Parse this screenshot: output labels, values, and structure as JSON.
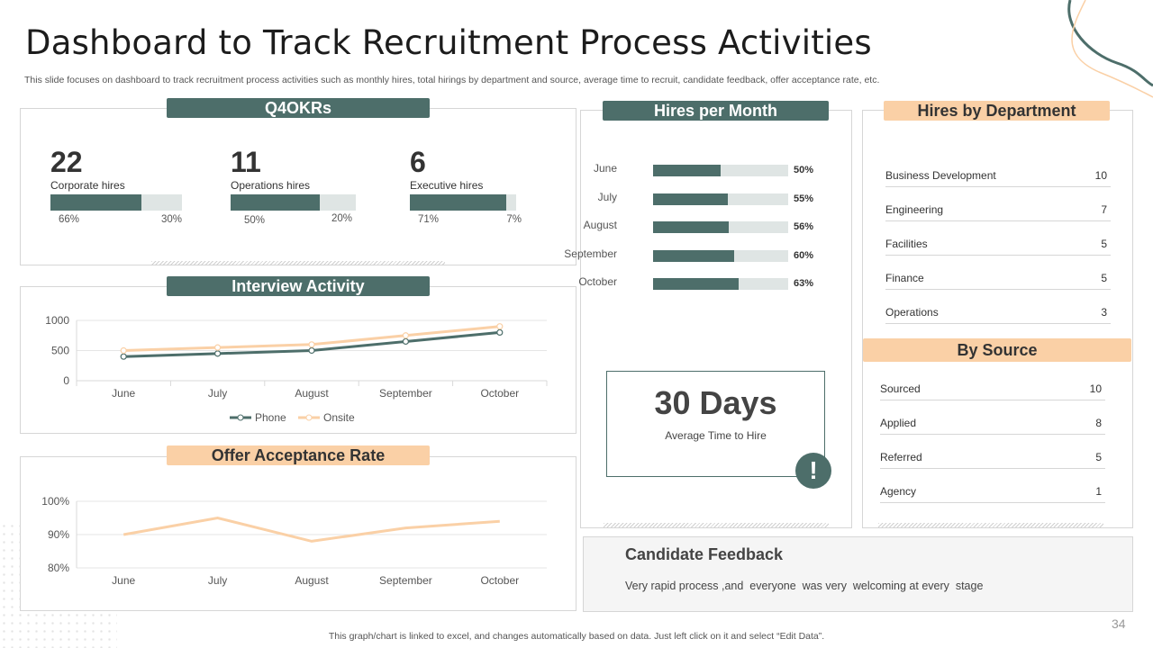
{
  "page": {
    "title": "Dashboard to Track Recruitment Process Activities",
    "subtitle": "This slide focuses on dashboard to track recruitment process activities such as monthly hires, total hirings by department and source, average time to recruit, candidate feedback, offer acceptance rate, etc.",
    "footer": "This graph/chart is linked to excel,  and changes automatically based on data. Just left click on it and select “Edit Data”.",
    "page_number": "34"
  },
  "okrs": {
    "title": "Q4OKRs",
    "items": [
      {
        "value": "22",
        "label": "Corporate hires",
        "pct_left": "66%",
        "pct_right": "30%",
        "fill": 0.69
      },
      {
        "value": "11",
        "label": "Operations hires",
        "pct_left": "50%",
        "pct_right": "20%",
        "fill": 0.71
      },
      {
        "value": "6",
        "label": "Executive hires",
        "pct_left": "71%",
        "pct_right": "7%",
        "fill": 0.91
      }
    ]
  },
  "hires_per_month": {
    "title": "Hires per Month",
    "rows": [
      {
        "month": "June",
        "pct": "50%",
        "value": 0.5
      },
      {
        "month": "July",
        "pct": "55%",
        "value": 0.55
      },
      {
        "month": "August",
        "pct": "56%",
        "value": 0.56
      },
      {
        "month": "September",
        "pct": "60%",
        "value": 0.6
      },
      {
        "month": "October",
        "pct": "63%",
        "value": 0.63
      }
    ]
  },
  "time_to_hire": {
    "value": "30 Days",
    "label": "Average  Time to Hire",
    "icon": "exclamation-icon"
  },
  "hires_by_department": {
    "title": "Hires by Department",
    "rows": [
      {
        "name": "Business Development",
        "value": "10"
      },
      {
        "name": "Engineering",
        "value": "7"
      },
      {
        "name": "Facilities",
        "value": "5"
      },
      {
        "name": "Finance",
        "value": "5"
      },
      {
        "name": "Operations",
        "value": "3"
      }
    ]
  },
  "by_source": {
    "title": "By Source",
    "rows": [
      {
        "name": "Sourced",
        "value": "10"
      },
      {
        "name": "Applied",
        "value": "8"
      },
      {
        "name": "Referred",
        "value": "5"
      },
      {
        "name": "Agency",
        "value": "1"
      }
    ]
  },
  "candidate_feedback": {
    "title": "Candidate Feedback",
    "text": "Very rapid process ,and  everyone  was very  welcoming at every  stage"
  },
  "interview_activity": {
    "title": "Interview Activity"
  },
  "offer_acceptance": {
    "title": "Offer Acceptance Rate"
  },
  "colors": {
    "dark": "#4d6e6a",
    "peach": "#fad0a6",
    "track": "#dfe5e4"
  },
  "chart_data": [
    {
      "type": "line",
      "categories": [
        "June",
        "July",
        "August",
        "September",
        "October"
      ],
      "series": [
        {
          "name": "Phone",
          "values": [
            400,
            450,
            500,
            650,
            800
          ],
          "color": "#4d6e6a"
        },
        {
          "name": "Onsite",
          "values": [
            500,
            550,
            600,
            750,
            900
          ],
          "color": "#fad0a6"
        }
      ],
      "ylim": [
        0,
        1000
      ],
      "yticks": [
        "0",
        "500",
        "1000"
      ],
      "yticks_values": [
        0,
        500,
        1000
      ],
      "legend": "bottom"
    },
    {
      "type": "line",
      "categories": [
        "June",
        "July",
        "August",
        "September",
        "October"
      ],
      "series": [
        {
          "values": [
            90,
            95,
            88,
            92,
            94
          ],
          "color": "#fad0a6"
        }
      ],
      "ylim": [
        80,
        100
      ],
      "yticks": [
        "80%",
        "90%",
        "100%"
      ],
      "yticks_values": [
        80,
        90,
        100
      ]
    },
    {
      "type": "bar",
      "orientation": "horizontal",
      "categories": [
        "June",
        "July",
        "August",
        "September",
        "October"
      ],
      "values": [
        50,
        55,
        56,
        60,
        63
      ],
      "xlim": [
        0,
        100
      ]
    }
  ]
}
